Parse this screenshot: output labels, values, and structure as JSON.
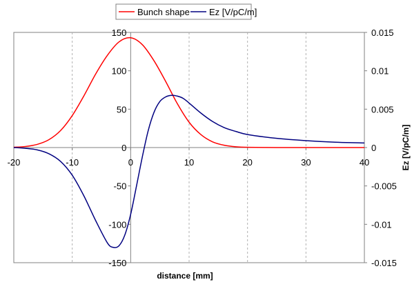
{
  "chart_data": {
    "type": "line",
    "title": "",
    "xlabel": "distance [mm]",
    "ylabel": "",
    "y2label": "Ez [V/pC/m]",
    "xlim": [
      -20,
      40
    ],
    "ylim": [
      -150,
      150
    ],
    "y2lim": [
      -0.015,
      0.015
    ],
    "grid": "vertical dashed at x ticks",
    "legend": "top-center",
    "x_ticks": [
      "-20",
      "-10",
      "0",
      "10",
      "20",
      "30",
      "40"
    ],
    "y_ticks": [
      "150",
      "100",
      "50",
      "0",
      "-50",
      "-100",
      "-150"
    ],
    "y2_ticks": [
      "0.015",
      "0.01",
      "0.005",
      "0",
      "-0.005",
      "-0.01",
      "-0.015"
    ],
    "series": [
      {
        "name": "Bunch shape",
        "color": "#ff0000",
        "axis": "left",
        "x": [
          -20,
          -18,
          -16,
          -14,
          -12,
          -10,
          -8,
          -6,
          -4,
          -2,
          0,
          2,
          4,
          6,
          8,
          10,
          12,
          14,
          16,
          18,
          20,
          25,
          30,
          35,
          40
        ],
        "y": [
          0.4,
          1.4,
          4.1,
          10.2,
          22.1,
          41.6,
          67.4,
          95.7,
          120,
          137.6,
          143,
          134,
          113,
          86,
          57,
          33,
          17,
          7.5,
          3,
          1,
          0.3,
          0,
          0,
          0,
          0
        ]
      },
      {
        "name": "Ez [V/pC/m]",
        "color": "#000080",
        "axis": "right",
        "x": [
          -20,
          -18,
          -16,
          -14,
          -12,
          -10,
          -8,
          -6,
          -4,
          -3,
          -2,
          -1,
          0,
          1,
          2,
          3,
          4,
          5,
          6,
          7,
          8,
          9,
          10,
          12,
          14,
          16,
          18,
          20,
          25,
          30,
          35,
          40
        ],
        "y": [
          0,
          -0.0001,
          -0.0003,
          -0.0008,
          -0.0018,
          -0.0036,
          -0.0063,
          -0.0095,
          -0.0124,
          -0.013,
          -0.0128,
          -0.0114,
          -0.0087,
          -0.005,
          -0.0012,
          0.0022,
          0.0046,
          0.006,
          0.0066,
          0.0068,
          0.0067,
          0.0064,
          0.0058,
          0.0045,
          0.0034,
          0.0026,
          0.0021,
          0.0017,
          0.0012,
          0.0009,
          0.0007,
          0.0006
        ]
      }
    ]
  }
}
